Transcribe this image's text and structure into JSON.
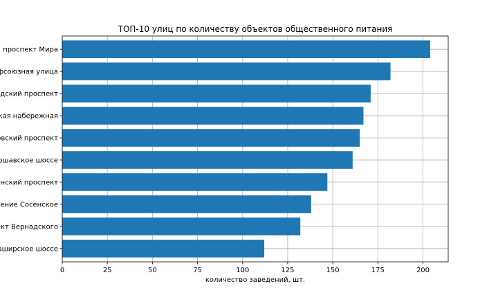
{
  "chart_data": {
    "type": "bar",
    "orientation": "horizontal",
    "title": "ТОП-10 улиц по количеству объектов общественного питания",
    "xlabel": "количество заведений, шт.",
    "ylabel": "",
    "xlim": [
      0,
      214
    ],
    "xticks": [
      0,
      25,
      50,
      75,
      100,
      125,
      150,
      175,
      200
    ],
    "grid": true,
    "bar_color": "#1f77b4",
    "categories": [
      "Каширское шоссе",
      "проспект Вернадского",
      "поселение Сосенское",
      "Ленинский проспект",
      "Варшавское шоссе",
      "Кутузовский проспект",
      "Пресненская набережная",
      "Ленинградский проспект",
      "Профсоюзная улица",
      "проспект Мира"
    ],
    "values": [
      112,
      132,
      138,
      147,
      161,
      165,
      167,
      171,
      182,
      204
    ]
  }
}
